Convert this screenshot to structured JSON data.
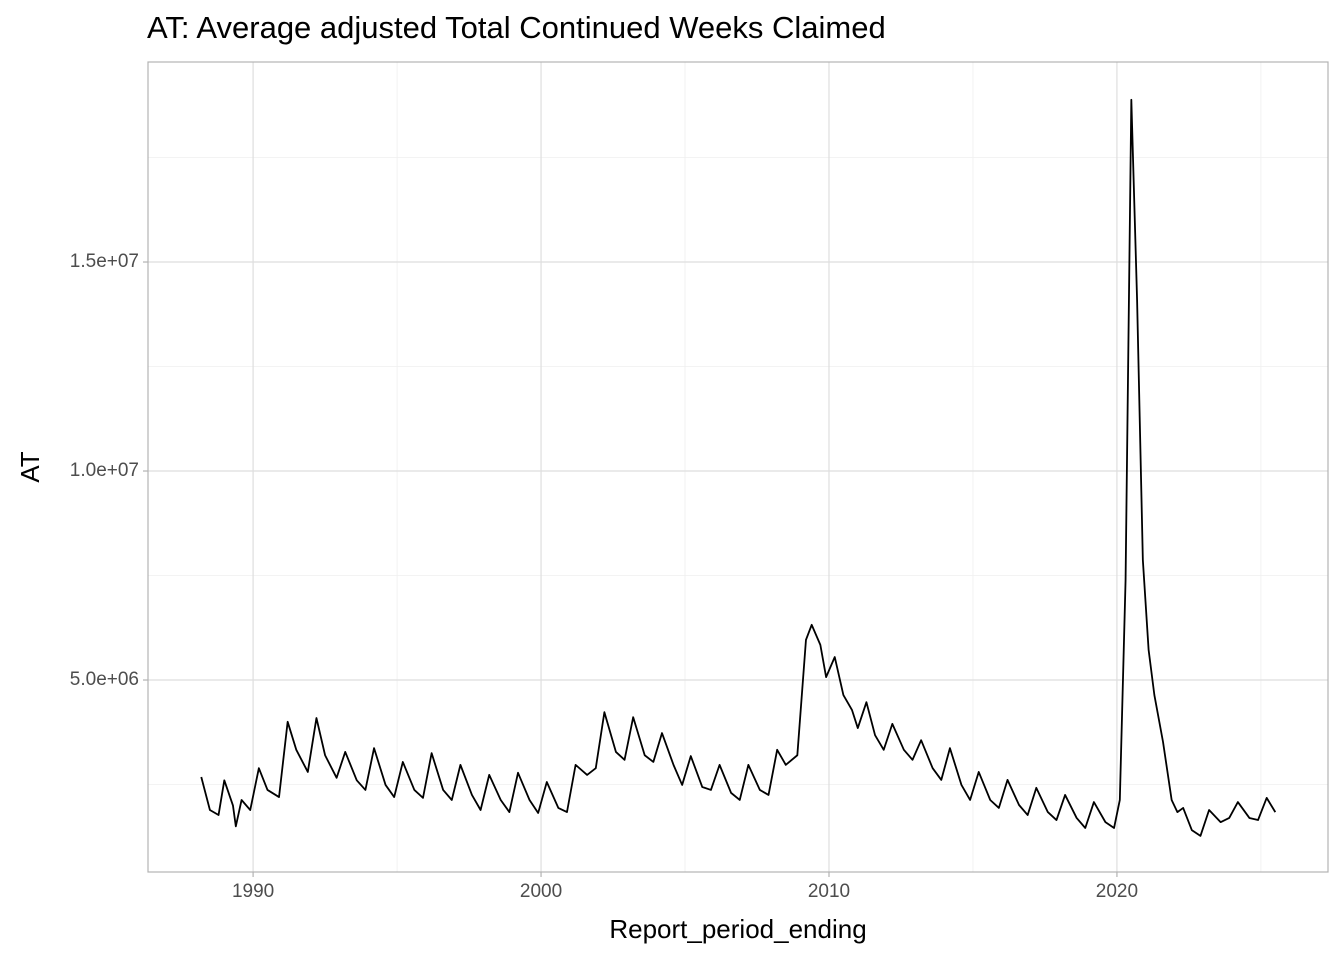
{
  "chart_data": {
    "type": "line",
    "title": "AT: Average adjusted Total Continued Weeks Claimed",
    "x_label": "Report_period_ending",
    "y_label": "AT",
    "color": "#000000",
    "grid": true,
    "xlim": [
      1986.35,
      2027.33
    ],
    "xticks": [
      1990,
      2000,
      2010,
      2020
    ],
    "x_minor_ticks": [
      1995,
      2005,
      2015,
      2025
    ],
    "ylim": [
      407000,
      19785000
    ],
    "yticks": [
      {
        "value": 5000000,
        "label": "5.0e+06"
      },
      {
        "value": 10000000,
        "label": "1.0e+07"
      },
      {
        "value": 15000000,
        "label": "1.5e+07"
      }
    ],
    "y_minor_ticks": [
      2500000,
      7500000,
      12500000,
      17500000
    ],
    "x": [
      1988.2,
      1988.5,
      1988.8,
      1989.0,
      1989.3,
      1989.4,
      1989.6,
      1989.9,
      1990.2,
      1990.5,
      1990.9,
      1991.2,
      1991.5,
      1991.9,
      1992.2,
      1992.5,
      1992.9,
      1993.2,
      1993.6,
      1993.9,
      1994.2,
      1994.6,
      1994.9,
      1995.2,
      1995.6,
      1995.9,
      1996.2,
      1996.6,
      1996.9,
      1997.2,
      1997.6,
      1997.9,
      1998.2,
      1998.6,
      1998.9,
      1999.2,
      1999.6,
      1999.9,
      2000.2,
      2000.6,
      2000.9,
      2001.2,
      2001.6,
      2001.9,
      2002.2,
      2002.6,
      2002.9,
      2003.2,
      2003.6,
      2003.9,
      2004.2,
      2004.6,
      2004.9,
      2005.2,
      2005.6,
      2005.9,
      2006.2,
      2006.6,
      2006.9,
      2007.2,
      2007.6,
      2007.9,
      2008.2,
      2008.5,
      2008.9,
      2009.2,
      2009.4,
      2009.7,
      2009.9,
      2010.2,
      2010.5,
      2010.8,
      2011.0,
      2011.3,
      2011.6,
      2011.9,
      2012.2,
      2012.6,
      2012.9,
      2013.2,
      2013.6,
      2013.9,
      2014.2,
      2014.6,
      2014.9,
      2015.2,
      2015.6,
      2015.9,
      2016.2,
      2016.6,
      2016.9,
      2017.2,
      2017.6,
      2017.9,
      2018.2,
      2018.6,
      2018.9,
      2019.2,
      2019.6,
      2019.9,
      2020.1,
      2020.3,
      2020.5,
      2020.7,
      2020.9,
      2021.1,
      2021.3,
      2021.6,
      2021.9,
      2022.1,
      2022.3,
      2022.6,
      2022.9,
      2023.2,
      2023.6,
      2023.9,
      2024.2,
      2024.6,
      2024.9,
      2025.2,
      2025.5
    ],
    "values": [
      2680000,
      1890000,
      1770000,
      2600000,
      2000000,
      1500000,
      2130000,
      1890000,
      2890000,
      2370000,
      2200000,
      4000000,
      3330000,
      2800000,
      4090000,
      3200000,
      2660000,
      3280000,
      2600000,
      2370000,
      3370000,
      2490000,
      2200000,
      3040000,
      2370000,
      2180000,
      3250000,
      2370000,
      2130000,
      2970000,
      2250000,
      1890000,
      2730000,
      2130000,
      1840000,
      2780000,
      2130000,
      1820000,
      2560000,
      1940000,
      1840000,
      2970000,
      2730000,
      2890000,
      4230000,
      3280000,
      3090000,
      4110000,
      3200000,
      3040000,
      3730000,
      2970000,
      2490000,
      3180000,
      2440000,
      2370000,
      2970000,
      2300000,
      2130000,
      2970000,
      2370000,
      2250000,
      3330000,
      2970000,
      3200000,
      5960000,
      6320000,
      5840000,
      5070000,
      5550000,
      4640000,
      4280000,
      3850000,
      4470000,
      3680000,
      3330000,
      3950000,
      3330000,
      3090000,
      3560000,
      2890000,
      2610000,
      3370000,
      2490000,
      2130000,
      2800000,
      2130000,
      1940000,
      2610000,
      2010000,
      1770000,
      2420000,
      1840000,
      1650000,
      2250000,
      1700000,
      1460000,
      2080000,
      1600000,
      1460000,
      2130000,
      7390000,
      18880000,
      14090000,
      7870000,
      5720000,
      4640000,
      3520000,
      2130000,
      1840000,
      1940000,
      1410000,
      1270000,
      1890000,
      1600000,
      1700000,
      2080000,
      1700000,
      1650000,
      2180000,
      1840000
    ]
  }
}
